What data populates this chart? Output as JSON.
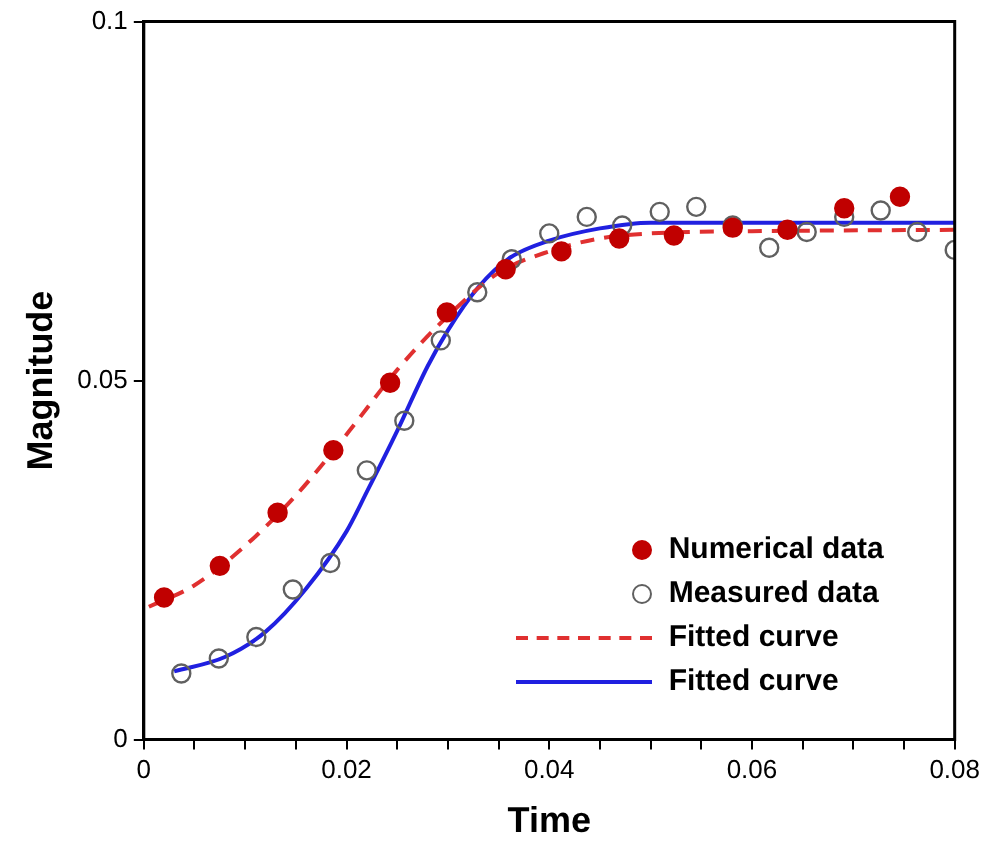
{
  "chart_data": {
    "type": "scatter",
    "xlabel": "Time",
    "ylabel": "Magnitude",
    "xlim": [
      0,
      0.08
    ],
    "ylim": [
      0,
      0.1
    ],
    "xticks": [
      0,
      {
        "value": 0.005,
        "label": null
      },
      {
        "value": 0.01,
        "label": null
      },
      {
        "value": 0.015,
        "label": null
      },
      0.02,
      {
        "value": 0.025,
        "label": null
      },
      {
        "value": 0.03,
        "label": null
      },
      {
        "value": 0.035,
        "label": null
      },
      0.04,
      {
        "value": 0.045,
        "label": null
      },
      {
        "value": 0.05,
        "label": null
      },
      {
        "value": 0.055,
        "label": null
      },
      0.06,
      {
        "value": 0.065,
        "label": null
      },
      {
        "value": 0.07,
        "label": null
      },
      {
        "value": 0.075,
        "label": null
      },
      0.08
    ],
    "yticks": [
      0,
      0.05,
      0.1
    ],
    "grid": false,
    "legend": "bottom right",
    "series": [
      {
        "name": "Numerical data",
        "color": "#c00000",
        "marker": "circle",
        "x": [
          0.002,
          0.0075,
          0.0132,
          0.0187,
          0.0243,
          0.0299,
          0.0357,
          0.0412,
          0.0469,
          0.0523,
          0.0581,
          0.0635,
          0.0691,
          0.0746
        ],
        "values": [
          0.0198,
          0.0242,
          0.0316,
          0.0403,
          0.0497,
          0.0595,
          0.0655,
          0.068,
          0.0698,
          0.0702,
          0.0713,
          0.071,
          0.074,
          0.0756
        ]
      },
      {
        "name": "Measured data",
        "color": "#606060",
        "marker": "circle",
        "x": [
          0.0037,
          0.0074,
          0.0111,
          0.0147,
          0.0184,
          0.022,
          0.0257,
          0.0293,
          0.0329,
          0.0363,
          0.04,
          0.0437,
          0.0472,
          0.0509,
          0.0545,
          0.0581,
          0.0617,
          0.0654,
          0.0691,
          0.0727,
          0.0763,
          0.08
        ],
        "values": [
          0.0092,
          0.0113,
          0.0143,
          0.0209,
          0.0246,
          0.0375,
          0.0444,
          0.0556,
          0.0623,
          0.0669,
          0.0705,
          0.0728,
          0.0716,
          0.0735,
          0.0742,
          0.0716,
          0.0685,
          0.0707,
          0.0728,
          0.0737,
          0.0707,
          0.0682
        ]
      },
      {
        "name": "Fitted curve",
        "type": "line",
        "color": "#e03030",
        "marker": "none",
        "line_style": "dashed",
        "x": [
          0.0005,
          0.005,
          0.01,
          0.015,
          0.02,
          0.025,
          0.03,
          0.035,
          0.04,
          0.045,
          0.05,
          0.06,
          0.08
        ],
        "values": [
          0.0185,
          0.0215,
          0.027,
          0.034,
          0.0425,
          0.0515,
          0.059,
          0.065,
          0.068,
          0.0698,
          0.0705,
          0.0708,
          0.071
        ]
      },
      {
        "name": "Fitted curve",
        "type": "line",
        "color": "#2020e0",
        "marker": "none",
        "line_style": "solid",
        "x": [
          0.003,
          0.008,
          0.012,
          0.016,
          0.02,
          0.022,
          0.025,
          0.028,
          0.03,
          0.033,
          0.036,
          0.04,
          0.045,
          0.05,
          0.06,
          0.08
        ],
        "values": [
          0.0095,
          0.0115,
          0.015,
          0.021,
          0.029,
          0.0345,
          0.043,
          0.052,
          0.057,
          0.063,
          0.067,
          0.0695,
          0.0712,
          0.072,
          0.072,
          0.072
        ]
      }
    ]
  }
}
